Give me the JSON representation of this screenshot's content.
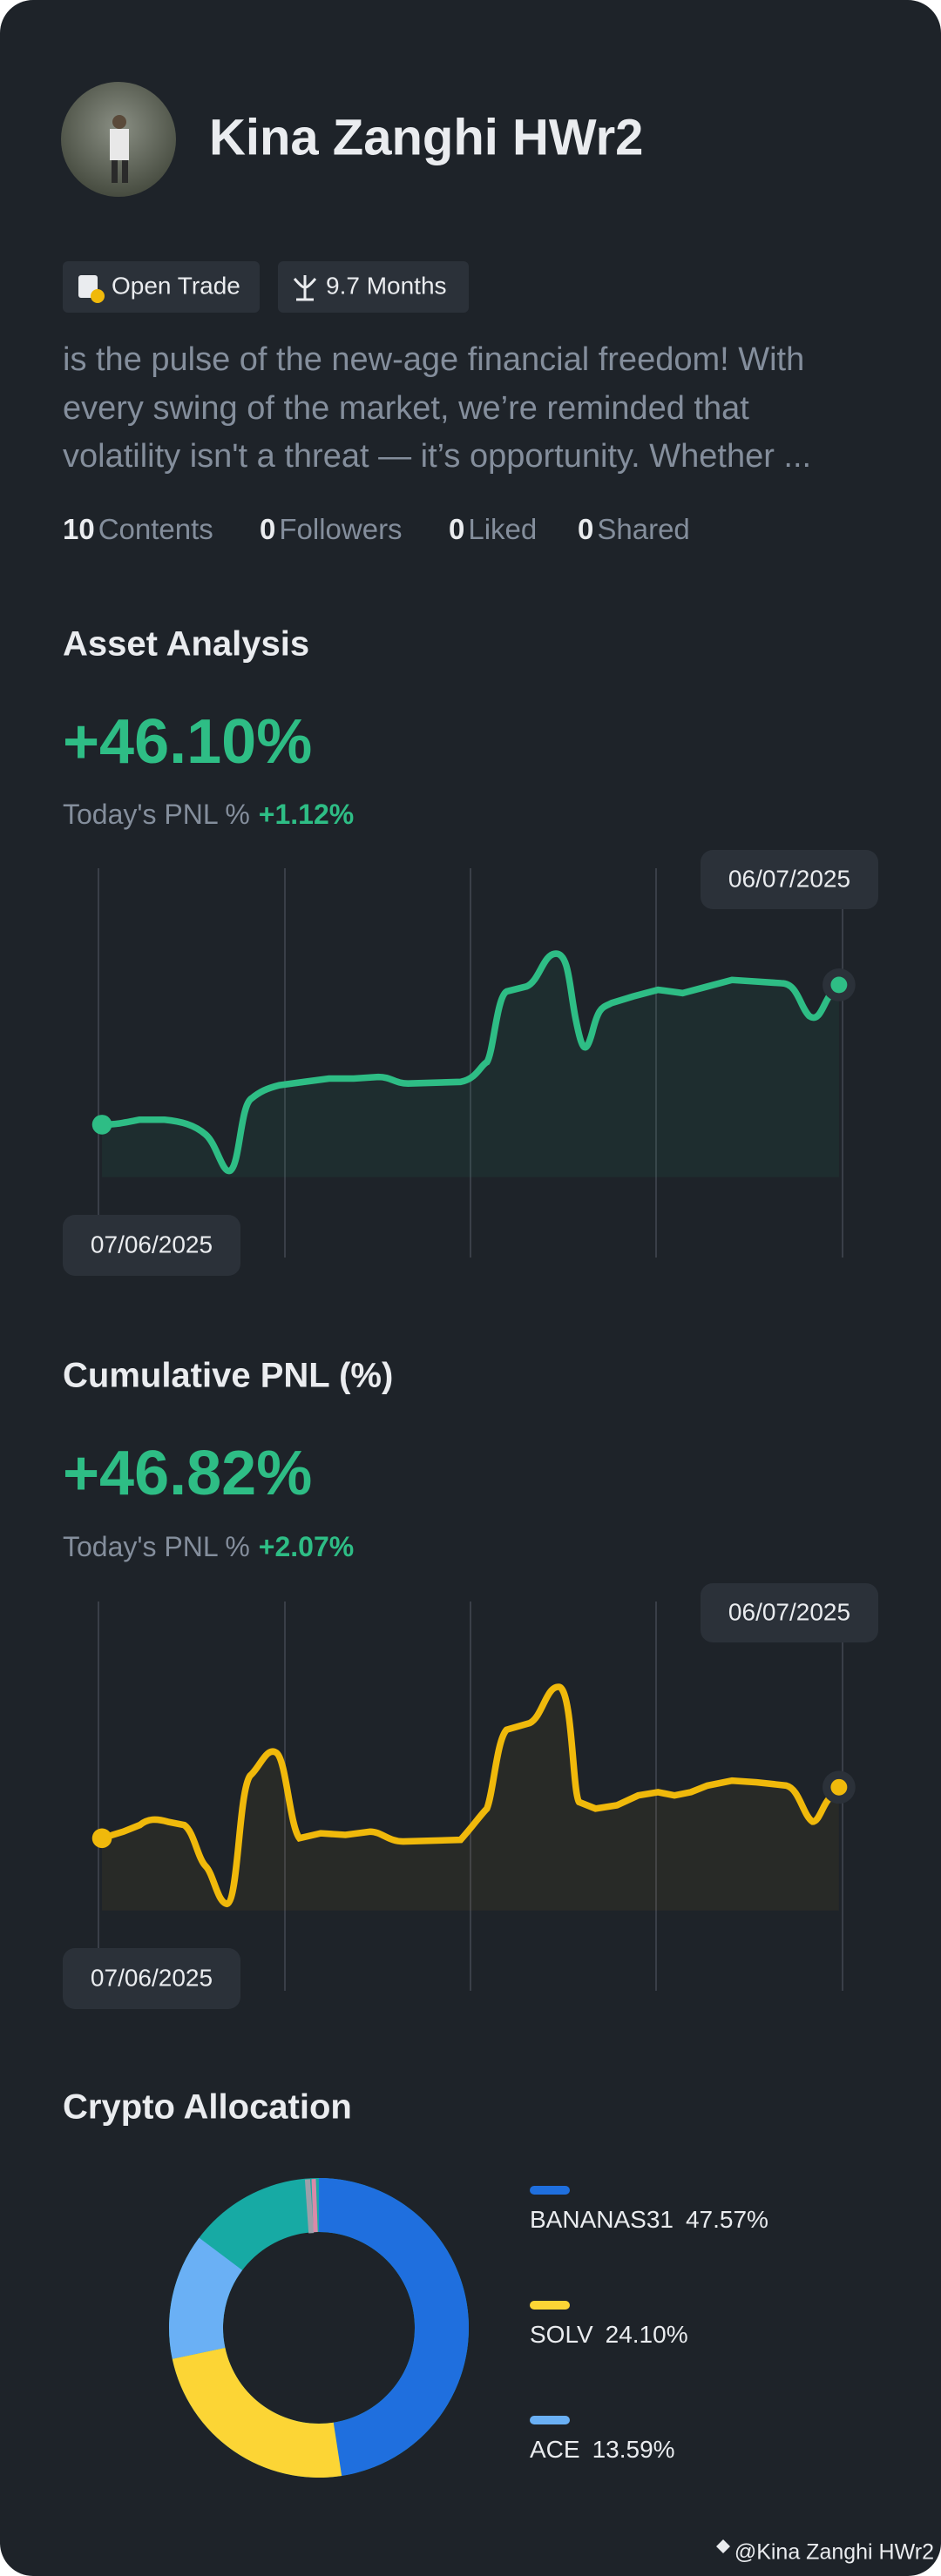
{
  "header": {
    "name": "Kina Zanghi HWr2",
    "tags": [
      "Open Trade",
      "9.7 Months"
    ],
    "bio": [
      "is the pulse of the new-age financial freedom! With",
      "every swing of the market, we’re reminded that",
      "volatility isn't a threat — it’s opportunity. Whether ..."
    ],
    "stats": [
      {
        "value": 10,
        "label": "Contents"
      },
      {
        "value": 0,
        "label": "Followers"
      },
      {
        "value": 0,
        "label": "Liked"
      },
      {
        "value": 0,
        "label": "Shared"
      }
    ]
  },
  "asset_analysis": {
    "title": "Asset Analysis",
    "value": "+46.10%",
    "today_label": "Today's PNL %",
    "today_value": "+1.12%",
    "start_date": "07/06/2025",
    "end_date": "06/07/2025"
  },
  "cumulative_pnl": {
    "title": "Cumulative PNL (%)",
    "value": "+46.82%",
    "today_label": "Today's PNL %",
    "today_value": "+2.07%",
    "start_date": "07/06/2025",
    "end_date": "06/07/2025"
  },
  "allocation": {
    "title": "Crypto Allocation",
    "items": [
      {
        "name": "BANANAS31",
        "value": 47.57,
        "value_label": "47.57%",
        "color": "#1f6fde"
      },
      {
        "name": "SOLV",
        "value": 24.1,
        "value_label": "24.10%",
        "color": "#fcd535"
      },
      {
        "name": "ACE",
        "value": 13.59,
        "value_label": "13.59%",
        "color": "#6ab0f5"
      }
    ]
  },
  "watermark": "@Kina Zanghi HWr2"
}
